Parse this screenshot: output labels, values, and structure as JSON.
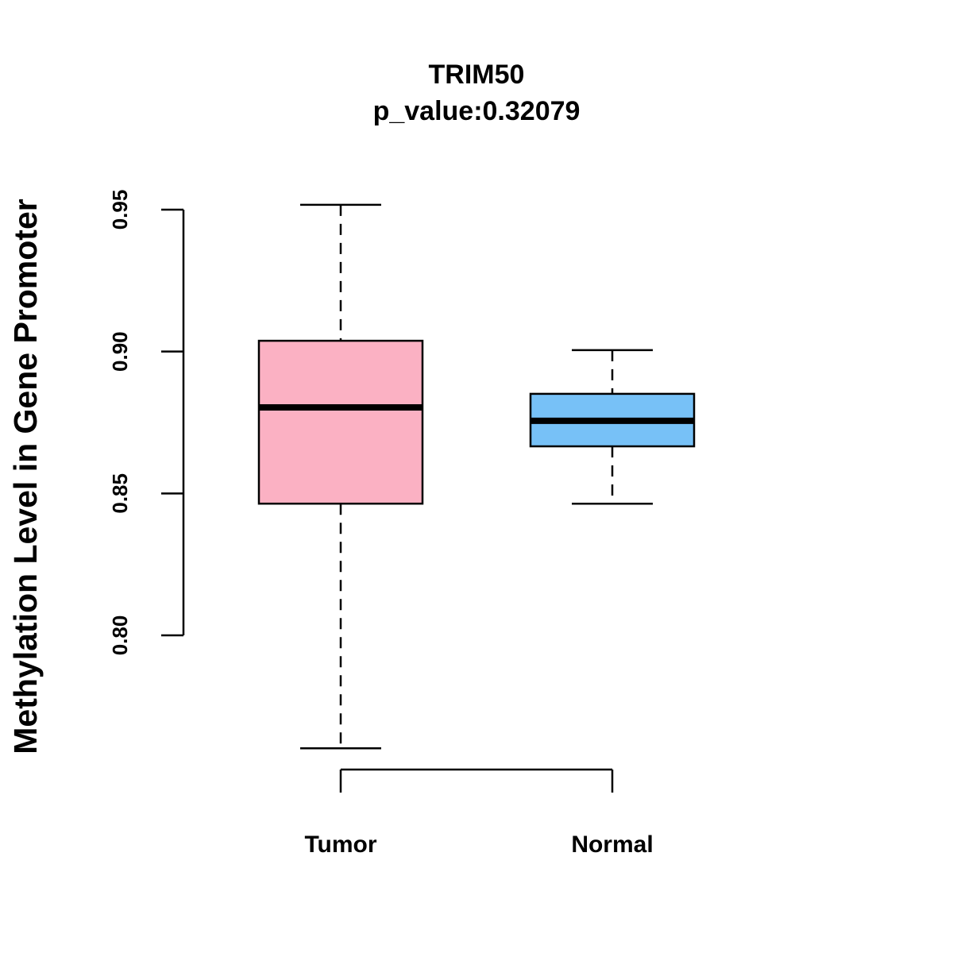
{
  "chart_data": {
    "type": "boxplot",
    "title": "TRIM50",
    "subtitle": "p_value:0.32079",
    "xlabel": "",
    "ylabel": "Methylation Level in Gene Promoter",
    "ylim": [
      0.76,
      0.952
    ],
    "yticks": [
      0.8,
      0.85,
      0.9,
      0.95
    ],
    "ytick_labels": [
      "0.80",
      "0.85",
      "0.90",
      "0.95"
    ],
    "grid": false,
    "categories": [
      "Tumor",
      "Normal"
    ],
    "boxes": [
      {
        "name": "Tumor",
        "whisker_low": 0.7602,
        "q1": 0.8464,
        "median": 0.8803,
        "q3": 0.9038,
        "whisker_high": 0.9517,
        "color": "#FBB1C3"
      },
      {
        "name": "Normal",
        "whisker_low": 0.8464,
        "q1": 0.8666,
        "median": 0.8756,
        "q3": 0.8851,
        "whisker_high": 0.9005,
        "color": "#77C1F7"
      }
    ]
  }
}
